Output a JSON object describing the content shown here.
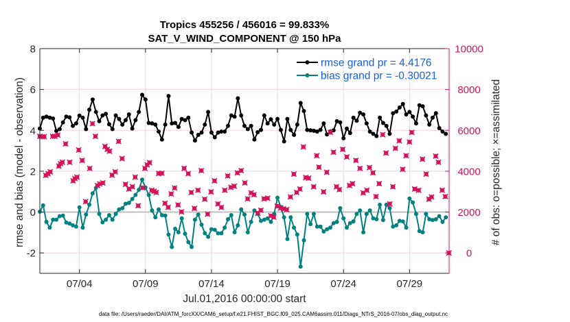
{
  "figure": {
    "title_line1": "Tropics 455256 / 456016 = 99.833%",
    "title_line2": "SAT_V_WIND_COMPONENT @ 150 hPa",
    "footer": "data file: /Users/raeder/DAI/ATM_forcXX/CAM6_setup/f.e21.FHIST_BGC.f09_025.CAM6assim.011/Diags_NTrS_2016-07/obs_diag_output.nc"
  },
  "colors": {
    "right_axis": "#D4145A",
    "legend_text": "#1560E6",
    "zero_line": "#BFBFBF",
    "vgrid": "#D9D9D9",
    "hgrid": "#F4D2DD"
  },
  "chart_data": {
    "type": "line",
    "title": "Tropics 455256 / 456016 = 99.833% / SAT_V_WIND_COMPONENT @ 150 hPa",
    "xlabel": "Jul.01,2016 00:00:00 start",
    "ylabel": "rmse and bias (model - observation)",
    "y2label": "# of obs: o=possible; ×=assimilated",
    "x_units": "days since Jul.01,2016 00:00:00",
    "xlim": [
      0,
      31
    ],
    "ylim": [
      -3,
      8
    ],
    "y2lim": [
      -1000,
      10000
    ],
    "xticks": [
      {
        "day": 3,
        "label": "07/04"
      },
      {
        "day": 8,
        "label": "07/09"
      },
      {
        "day": 13,
        "label": "07/14"
      },
      {
        "day": 18,
        "label": "07/19"
      },
      {
        "day": 23,
        "label": "07/24"
      },
      {
        "day": 28,
        "label": "07/29"
      }
    ],
    "yticks": [
      -2,
      0,
      2,
      4,
      6,
      8
    ],
    "y2ticks": [
      0,
      2000,
      4000,
      6000,
      8000,
      10000
    ],
    "grid": true,
    "zero_line": true,
    "legend_position": "top-right",
    "time_step_days": 0.25,
    "series": [
      {
        "name": "rmse",
        "legend": "rmse grand pr = 4.4176",
        "color": "#000000",
        "axis": "left",
        "values": [
          4.09,
          4.62,
          4.67,
          4.62,
          4.58,
          3.97,
          4.06,
          4.39,
          4.67,
          4.64,
          4.22,
          4.34,
          4.72,
          4.62,
          4.06,
          5.01,
          5.51,
          4.9,
          4.45,
          4.73,
          4.81,
          4.3,
          4.06,
          4.73,
          4.56,
          4.28,
          4.5,
          4.78,
          4.09,
          4.5,
          4.9,
          5.74,
          5.51,
          4.36,
          4.34,
          4.28,
          3.94,
          3.55,
          4.28,
          5.68,
          4.34,
          4.36,
          4.17,
          4.56,
          4.5,
          4.62,
          3.89,
          3.5,
          3.78,
          3.89,
          4.28,
          4.9,
          3.89,
          3.66,
          3.89,
          3.94,
          3.94,
          4.22,
          4.73,
          4.67,
          5.57,
          4.73,
          4.22,
          4.06,
          4.22,
          3.55,
          3.91,
          4.02,
          4.73,
          4.34,
          4.54,
          4.28,
          4.56,
          4.02,
          3.46,
          4.56,
          4.02,
          3.78,
          4.28,
          5.34,
          4.95,
          4.02,
          4.0,
          3.98,
          3.94,
          4.02,
          4.34,
          3.8,
          3.94,
          4.0,
          4.45,
          4.39,
          3.61,
          4.09,
          3.87,
          4.62,
          4.47,
          4.86,
          4.78,
          4.34,
          3.94,
          3.83,
          3.72,
          4.62,
          4.36,
          4.22,
          3.83,
          4.84,
          4.92,
          5.12,
          5.29,
          4.78,
          4.9,
          4.67,
          4.34,
          5.23,
          5.18,
          4.73,
          4.28,
          4.62,
          4.84,
          4.11,
          3.94,
          3.83
        ]
      },
      {
        "name": "bias",
        "legend": "bias grand pr = -0.30021",
        "color": "#008080",
        "axis": "left",
        "values": [
          0.02,
          0.33,
          -0.48,
          -0.76,
          -0.37,
          -0.37,
          -0.2,
          -0.17,
          -0.51,
          -0.56,
          -0.65,
          -0.71,
          0.23,
          -0.76,
          -0.12,
          0.36,
          0.92,
          1.18,
          -0.09,
          -0.5,
          -0.37,
          -0.15,
          -0.37,
          -0.09,
          0.13,
          0.19,
          0.41,
          0.45,
          0.64,
          0.84,
          1.09,
          1.59,
          1.2,
          0.84,
          0.08,
          -0.26,
          0.13,
          -0.15,
          -0.17,
          -1.1,
          -1.71,
          -0.82,
          -0.99,
          -0.31,
          -1.06,
          -1.47,
          -1.71,
          -0.37,
          -0.12,
          -0.62,
          -1.04,
          -1.21,
          -0.84,
          -0.87,
          -1.04,
          -1.04,
          -0.76,
          -0.35,
          -0.15,
          -0.99,
          -0.65,
          0.13,
          -0.12,
          -0.99,
          -0.48,
          0.08,
          -0.09,
          -0.43,
          -0.37,
          -0.31,
          -0.48,
          -0.09,
          0.7,
          0.25,
          -0.26,
          -1.32,
          -0.26,
          -0.76,
          -1.1,
          -2.67,
          -1.38,
          -0.09,
          -0.59,
          -0.09,
          -0.71,
          -0.71,
          -0.95,
          -0.84,
          -0.76,
          -0.54,
          -0.48,
          0.19,
          -0.31,
          -0.76,
          -0.54,
          -0.46,
          -0.09,
          0.08,
          -0.99,
          -0.09,
          0.08,
          -0.31,
          -0.35,
          0.36,
          -0.39,
          0.36,
          0.19,
          -0.71,
          -0.65,
          -0.43,
          -0.46,
          -0.76,
          0.66,
          0.47,
          -0.09,
          -0.93,
          -0.99,
          -0.09,
          -0.35,
          -0.39,
          -0.35,
          -0.2,
          -0.48,
          -0.26
        ]
      }
    ],
    "obs_counts": {
      "name": "# of obs (possible / assimilated)",
      "color": "#D4145A",
      "axis": "right",
      "points": [
        [
          0.0,
          5710
        ],
        [
          0.16,
          5690
        ],
        [
          0.33,
          5690
        ],
        [
          0.45,
          3800
        ],
        [
          0.62,
          3880
        ],
        [
          0.79,
          3970
        ],
        [
          0.97,
          5710
        ],
        [
          1.14,
          5710
        ],
        [
          1.36,
          5770
        ],
        [
          1.44,
          4250
        ],
        [
          1.57,
          4370
        ],
        [
          1.71,
          4440
        ],
        [
          1.95,
          5340
        ],
        [
          2.26,
          4440
        ],
        [
          2.52,
          3530
        ],
        [
          2.66,
          3640
        ],
        [
          2.81,
          3710
        ],
        [
          2.95,
          5040
        ],
        [
          3.21,
          4530
        ],
        [
          3.47,
          2510
        ],
        [
          3.78,
          4140
        ],
        [
          3.99,
          6330
        ],
        [
          4.21,
          5710
        ],
        [
          4.37,
          3300
        ],
        [
          4.54,
          3380
        ],
        [
          4.77,
          3430
        ],
        [
          4.94,
          5210
        ],
        [
          5.11,
          5070
        ],
        [
          5.28,
          4980
        ],
        [
          5.47,
          3810
        ],
        [
          5.71,
          3970
        ],
        [
          5.97,
          5460
        ],
        [
          6.23,
          4620
        ],
        [
          6.49,
          3360
        ],
        [
          6.75,
          3130
        ],
        [
          7.01,
          3240
        ],
        [
          7.22,
          3710
        ],
        [
          7.45,
          2310
        ],
        [
          7.79,
          3190
        ],
        [
          7.96,
          4140
        ],
        [
          8.13,
          4310
        ],
        [
          8.31,
          4420
        ],
        [
          8.48,
          3070
        ],
        [
          8.65,
          3020
        ],
        [
          8.82,
          2960
        ],
        [
          9.0,
          3890
        ],
        [
          9.24,
          3900
        ],
        [
          9.48,
          2430
        ],
        [
          9.72,
          2230
        ],
        [
          9.95,
          2890
        ],
        [
          10.21,
          3180
        ],
        [
          10.47,
          2350
        ],
        [
          10.73,
          2010
        ],
        [
          10.93,
          4140
        ],
        [
          11.24,
          3880
        ],
        [
          11.47,
          2960
        ],
        [
          11.71,
          2180
        ],
        [
          11.98,
          3070
        ],
        [
          12.23,
          4030
        ],
        [
          12.49,
          2630
        ],
        [
          12.71,
          1900
        ],
        [
          12.97,
          2990
        ],
        [
          13.23,
          3530
        ],
        [
          13.49,
          2400
        ],
        [
          13.75,
          2230
        ],
        [
          14.01,
          3070
        ],
        [
          14.23,
          3770
        ],
        [
          14.47,
          3210
        ],
        [
          14.72,
          3270
        ],
        [
          14.96,
          3920
        ],
        [
          15.25,
          4030
        ],
        [
          15.53,
          3430
        ],
        [
          15.74,
          2650
        ],
        [
          16.0,
          2940
        ],
        [
          16.22,
          2850
        ],
        [
          16.51,
          1950
        ],
        [
          16.74,
          2090
        ],
        [
          16.98,
          2650
        ],
        [
          17.25,
          2680
        ],
        [
          17.5,
          1820
        ],
        [
          17.72,
          1750
        ],
        [
          17.98,
          2290
        ],
        [
          18.24,
          2200
        ],
        [
          18.46,
          2160
        ],
        [
          18.7,
          2120
        ],
        [
          18.98,
          2740
        ],
        [
          19.24,
          3860
        ],
        [
          19.45,
          2960
        ],
        [
          19.7,
          3130
        ],
        [
          19.96,
          5190
        ],
        [
          20.14,
          3690
        ],
        [
          20.36,
          3660
        ],
        [
          20.74,
          3240
        ],
        [
          20.97,
          4760
        ],
        [
          21.14,
          4200
        ],
        [
          21.49,
          2990
        ],
        [
          21.73,
          3950
        ],
        [
          22.01,
          5900
        ],
        [
          22.24,
          4930
        ],
        [
          22.47,
          3240
        ],
        [
          22.69,
          3100
        ],
        [
          22.94,
          5070
        ],
        [
          23.25,
          4700
        ],
        [
          23.46,
          3300
        ],
        [
          23.68,
          3390
        ],
        [
          23.94,
          4530
        ],
        [
          24.25,
          4140
        ],
        [
          24.49,
          2940
        ],
        [
          24.77,
          3070
        ],
        [
          24.97,
          4180
        ],
        [
          25.23,
          3920
        ],
        [
          25.46,
          2760
        ],
        [
          25.7,
          3390
        ],
        [
          25.97,
          5790
        ],
        [
          26.22,
          4890
        ],
        [
          26.5,
          2400
        ],
        [
          26.74,
          3240
        ],
        [
          26.93,
          5120
        ],
        [
          27.22,
          5490
        ],
        [
          27.48,
          4090
        ],
        [
          27.74,
          4760
        ],
        [
          28.0,
          5430
        ],
        [
          28.17,
          5900
        ],
        [
          28.39,
          3130
        ],
        [
          28.69,
          3070
        ],
        [
          28.98,
          4590
        ],
        [
          29.26,
          3860
        ],
        [
          29.47,
          2630
        ],
        [
          29.67,
          2740
        ],
        [
          29.98,
          4740
        ],
        [
          30.19,
          4440
        ],
        [
          30.47,
          3070
        ],
        [
          30.71,
          2760
        ],
        [
          30.98,
          0
        ]
      ]
    }
  }
}
